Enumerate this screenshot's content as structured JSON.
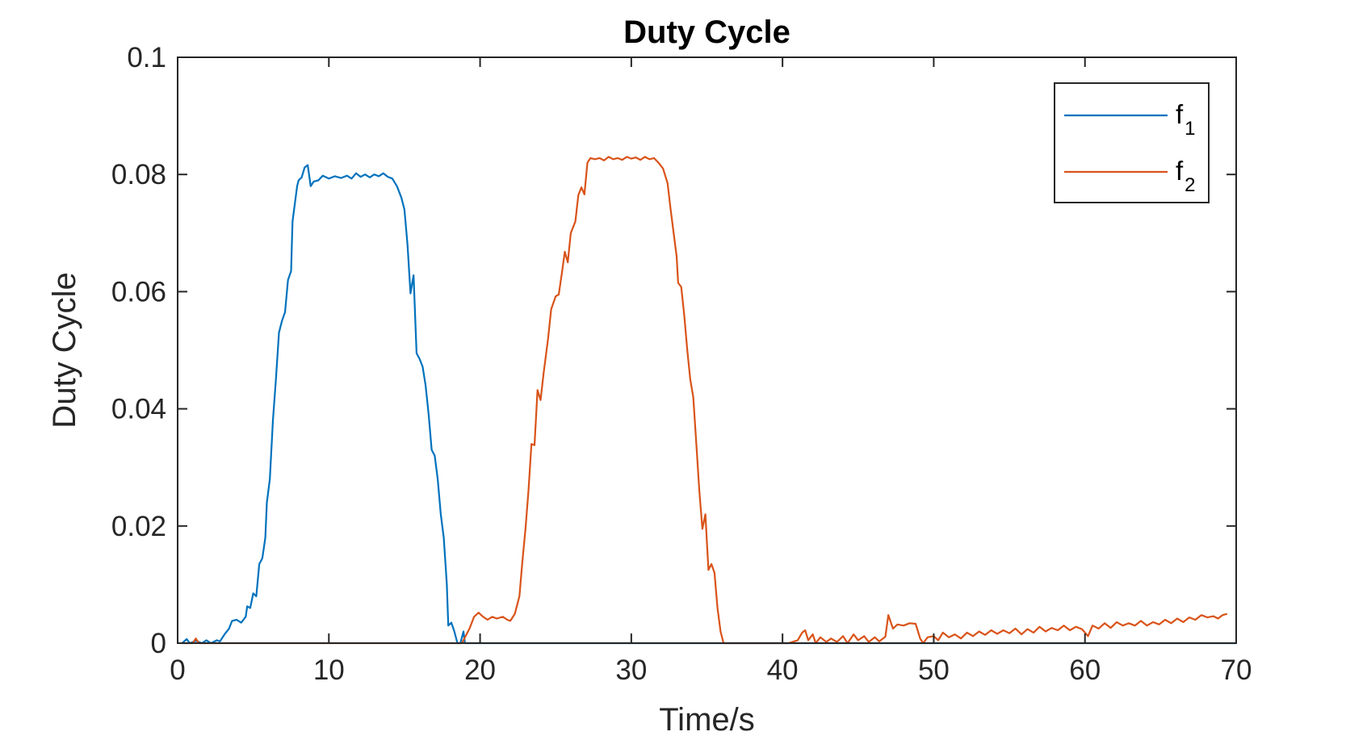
{
  "chart_data": {
    "type": "line",
    "title": "Duty Cycle",
    "xlabel": "Time/s",
    "ylabel": "Duty Cycle",
    "xlim": [
      0,
      70
    ],
    "ylim": [
      0,
      0.1
    ],
    "xticks": [
      0,
      10,
      20,
      30,
      40,
      50,
      60,
      70
    ],
    "xtick_labels": [
      "0",
      "10",
      "20",
      "30",
      "40",
      "50",
      "60",
      "70"
    ],
    "yticks": [
      0,
      0.02,
      0.04,
      0.06,
      0.08,
      0.1
    ],
    "ytick_labels": [
      "0",
      "0.02",
      "0.04",
      "0.06",
      "0.08",
      "0.1"
    ],
    "grid": false,
    "legend_position": "top-right",
    "series": [
      {
        "name": "f1",
        "label_base": "f",
        "label_sub": "1",
        "color": "#0072BD",
        "points": [
          [
            0.3,
            0
          ],
          [
            0.6,
            0.0007
          ],
          [
            0.8,
            0
          ],
          [
            1.2,
            0.0004
          ],
          [
            1.6,
            0
          ],
          [
            1.9,
            0.0005
          ],
          [
            2.2,
            0
          ],
          [
            2.6,
            0.0005
          ],
          [
            2.8,
            0.0003
          ],
          [
            3.1,
            0.0015
          ],
          [
            3.4,
            0.0025
          ],
          [
            3.6,
            0.0038
          ],
          [
            3.9,
            0.004
          ],
          [
            4.2,
            0.0035
          ],
          [
            4.5,
            0.0045
          ],
          [
            4.6,
            0.0063
          ],
          [
            4.8,
            0.006
          ],
          [
            5.0,
            0.0085
          ],
          [
            5.2,
            0.008
          ],
          [
            5.4,
            0.0135
          ],
          [
            5.6,
            0.0145
          ],
          [
            5.8,
            0.018
          ],
          [
            5.9,
            0.024
          ],
          [
            6.1,
            0.028
          ],
          [
            6.3,
            0.038
          ],
          [
            6.5,
            0.045
          ],
          [
            6.7,
            0.053
          ],
          [
            6.9,
            0.055
          ],
          [
            7.1,
            0.0565
          ],
          [
            7.3,
            0.062
          ],
          [
            7.5,
            0.0635
          ],
          [
            7.6,
            0.072
          ],
          [
            7.9,
            0.078
          ],
          [
            8.0,
            0.079
          ],
          [
            8.2,
            0.0795
          ],
          [
            8.4,
            0.0812
          ],
          [
            8.6,
            0.0816
          ],
          [
            8.8,
            0.078
          ],
          [
            9.0,
            0.0788
          ],
          [
            9.3,
            0.079
          ],
          [
            9.6,
            0.0798
          ],
          [
            10.0,
            0.0793
          ],
          [
            10.4,
            0.0797
          ],
          [
            10.8,
            0.0794
          ],
          [
            11.2,
            0.0798
          ],
          [
            11.5,
            0.0793
          ],
          [
            11.8,
            0.0802
          ],
          [
            12.1,
            0.0796
          ],
          [
            12.4,
            0.08
          ],
          [
            12.7,
            0.0795
          ],
          [
            13.0,
            0.08
          ],
          [
            13.3,
            0.0797
          ],
          [
            13.6,
            0.0802
          ],
          [
            13.9,
            0.0796
          ],
          [
            14.2,
            0.0793
          ],
          [
            14.5,
            0.078
          ],
          [
            14.8,
            0.076
          ],
          [
            15.0,
            0.074
          ],
          [
            15.2,
            0.068
          ],
          [
            15.4,
            0.0597
          ],
          [
            15.6,
            0.0628
          ],
          [
            15.8,
            0.0495
          ],
          [
            16.0,
            0.0485
          ],
          [
            16.2,
            0.0472
          ],
          [
            16.4,
            0.044
          ],
          [
            16.6,
            0.039
          ],
          [
            16.8,
            0.033
          ],
          [
            17.0,
            0.032
          ],
          [
            17.2,
            0.028
          ],
          [
            17.4,
            0.022
          ],
          [
            17.6,
            0.018
          ],
          [
            17.8,
            0.01
          ],
          [
            17.9,
            0.003
          ],
          [
            18.1,
            0.0035
          ],
          [
            18.3,
            0.002
          ],
          [
            18.5,
            0
          ],
          [
            18.7,
            0
          ],
          [
            18.9,
            0.002
          ],
          [
            19.0,
            0
          ],
          [
            70.0,
            0
          ]
        ]
      },
      {
        "name": "f2",
        "label_base": "f",
        "label_sub": "2",
        "color": "#D95319",
        "points": [
          [
            0.3,
            0
          ],
          [
            1.0,
            0
          ],
          [
            1.2,
            0.0008
          ],
          [
            1.4,
            0
          ],
          [
            18.8,
            0
          ],
          [
            19.3,
            0.0025
          ],
          [
            19.6,
            0.0045
          ],
          [
            19.9,
            0.0052
          ],
          [
            20.2,
            0.0045
          ],
          [
            20.5,
            0.004
          ],
          [
            20.8,
            0.0045
          ],
          [
            21.1,
            0.0042
          ],
          [
            21.5,
            0.0045
          ],
          [
            21.8,
            0.004
          ],
          [
            22.0,
            0.0038
          ],
          [
            22.3,
            0.005
          ],
          [
            22.6,
            0.008
          ],
          [
            22.8,
            0.014
          ],
          [
            23.0,
            0.0195
          ],
          [
            23.2,
            0.026
          ],
          [
            23.4,
            0.034
          ],
          [
            23.6,
            0.0338
          ],
          [
            23.8,
            0.0432
          ],
          [
            24.0,
            0.0415
          ],
          [
            24.2,
            0.046
          ],
          [
            24.5,
            0.052
          ],
          [
            24.7,
            0.057
          ],
          [
            25.0,
            0.0592
          ],
          [
            25.2,
            0.0595
          ],
          [
            25.4,
            0.063
          ],
          [
            25.6,
            0.0668
          ],
          [
            25.8,
            0.065
          ],
          [
            26.0,
            0.07
          ],
          [
            26.3,
            0.072
          ],
          [
            26.5,
            0.0765
          ],
          [
            26.7,
            0.0778
          ],
          [
            26.9,
            0.0766
          ],
          [
            27.1,
            0.082
          ],
          [
            27.3,
            0.0828
          ],
          [
            27.6,
            0.0826
          ],
          [
            27.9,
            0.0828
          ],
          [
            28.2,
            0.0824
          ],
          [
            28.5,
            0.083
          ],
          [
            28.8,
            0.0826
          ],
          [
            29.1,
            0.0828
          ],
          [
            29.4,
            0.0825
          ],
          [
            29.7,
            0.083
          ],
          [
            30.0,
            0.0827
          ],
          [
            30.3,
            0.0829
          ],
          [
            30.6,
            0.0825
          ],
          [
            30.9,
            0.083
          ],
          [
            31.2,
            0.0826
          ],
          [
            31.5,
            0.0828
          ],
          [
            31.8,
            0.082
          ],
          [
            32.1,
            0.081
          ],
          [
            32.4,
            0.0785
          ],
          [
            32.6,
            0.074
          ],
          [
            32.8,
            0.07
          ],
          [
            33.0,
            0.066
          ],
          [
            33.1,
            0.0615
          ],
          [
            33.3,
            0.0608
          ],
          [
            33.5,
            0.056
          ],
          [
            33.7,
            0.05
          ],
          [
            33.9,
            0.045
          ],
          [
            34.1,
            0.042
          ],
          [
            34.3,
            0.034
          ],
          [
            34.5,
            0.026
          ],
          [
            34.7,
            0.0195
          ],
          [
            34.9,
            0.022
          ],
          [
            35.1,
            0.0125
          ],
          [
            35.3,
            0.0135
          ],
          [
            35.5,
            0.012
          ],
          [
            35.7,
            0.006
          ],
          [
            35.9,
            0.002
          ],
          [
            36.1,
            0
          ],
          [
            40.4,
            0
          ],
          [
            41.0,
            0.0005
          ],
          [
            41.3,
            0.0018
          ],
          [
            41.5,
            0.0022
          ],
          [
            41.7,
            0.0005
          ],
          [
            42.0,
            0.0015
          ],
          [
            42.2,
            0
          ],
          [
            42.5,
            0.001
          ],
          [
            42.9,
            0.0002
          ],
          [
            43.2,
            0.0008
          ],
          [
            43.6,
            0.0002
          ],
          [
            44.0,
            0.0012
          ],
          [
            44.3,
            0
          ],
          [
            44.7,
            0.0015
          ],
          [
            45.0,
            0.0005
          ],
          [
            45.4,
            0.0012
          ],
          [
            45.7,
            0.0002
          ],
          [
            46.1,
            0.001
          ],
          [
            46.4,
            0.0003
          ],
          [
            46.8,
            0.0011
          ],
          [
            47.0,
            0.0048
          ],
          [
            47.3,
            0.0025
          ],
          [
            47.6,
            0.0032
          ],
          [
            48.0,
            0.003
          ],
          [
            48.4,
            0.0034
          ],
          [
            48.8,
            0.0033
          ],
          [
            49.1,
            0.0008
          ],
          [
            49.3,
            0
          ],
          [
            49.6,
            0.001
          ],
          [
            50.0,
            0.0012
          ],
          [
            50.3,
            0.0005
          ],
          [
            50.6,
            0.0018
          ],
          [
            51.0,
            0.001
          ],
          [
            51.4,
            0.0015
          ],
          [
            51.8,
            0.0008
          ],
          [
            52.2,
            0.0018
          ],
          [
            52.6,
            0.0012
          ],
          [
            53.0,
            0.002
          ],
          [
            53.4,
            0.0014
          ],
          [
            53.8,
            0.0022
          ],
          [
            54.2,
            0.0016
          ],
          [
            54.6,
            0.0022
          ],
          [
            55.0,
            0.0017
          ],
          [
            55.4,
            0.0025
          ],
          [
            55.8,
            0.0015
          ],
          [
            56.2,
            0.0024
          ],
          [
            56.6,
            0.0018
          ],
          [
            57.0,
            0.0028
          ],
          [
            57.4,
            0.002
          ],
          [
            57.8,
            0.0026
          ],
          [
            58.2,
            0.0022
          ],
          [
            58.6,
            0.003
          ],
          [
            59.0,
            0.0022
          ],
          [
            59.4,
            0.0028
          ],
          [
            59.8,
            0.0024
          ],
          [
            60.2,
            0.0012
          ],
          [
            60.5,
            0.003
          ],
          [
            60.9,
            0.0025
          ],
          [
            61.3,
            0.0034
          ],
          [
            61.7,
            0.0026
          ],
          [
            62.1,
            0.0036
          ],
          [
            62.5,
            0.003
          ],
          [
            62.9,
            0.0034
          ],
          [
            63.3,
            0.003
          ],
          [
            63.7,
            0.0038
          ],
          [
            64.1,
            0.003
          ],
          [
            64.5,
            0.0036
          ],
          [
            64.9,
            0.0032
          ],
          [
            65.3,
            0.004
          ],
          [
            65.7,
            0.0034
          ],
          [
            66.1,
            0.0042
          ],
          [
            66.5,
            0.0036
          ],
          [
            66.9,
            0.0044
          ],
          [
            67.3,
            0.004
          ],
          [
            67.7,
            0.0048
          ],
          [
            68.1,
            0.0044
          ],
          [
            68.5,
            0.0046
          ],
          [
            68.8,
            0.0042
          ],
          [
            69.1,
            0.0048
          ],
          [
            69.4,
            0.005
          ]
        ]
      }
    ]
  }
}
